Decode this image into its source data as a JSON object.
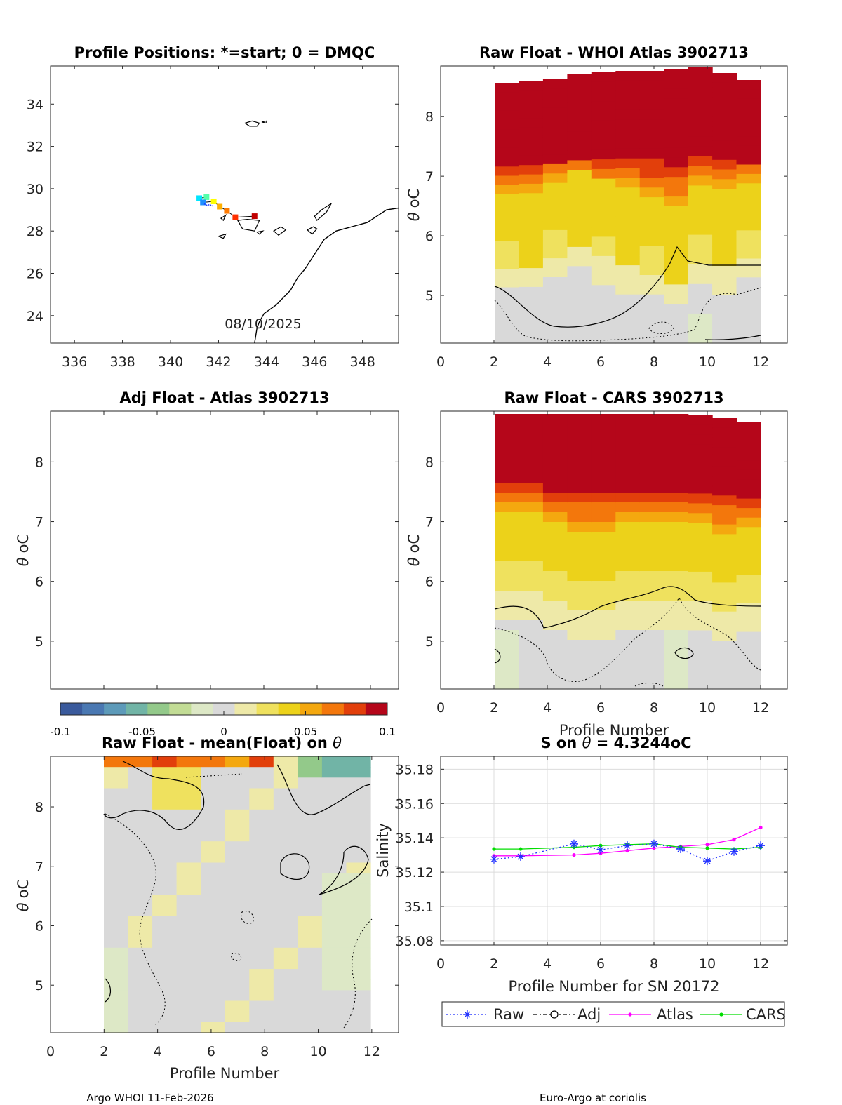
{
  "colors": {
    "colormap": [
      "#3a5a9c",
      "#4a78b2",
      "#5d9ab9",
      "#71b4a6",
      "#93c98a",
      "#c2dc95",
      "#dde8c6",
      "#d9d9d9",
      "#eee9a8",
      "#efe15e",
      "#ecd21a",
      "#f4a80f",
      "#f3770c",
      "#e23f0b",
      "#b5061a"
    ],
    "raw": "#1f2fff",
    "adj": "#000000",
    "atlas": "#ff00ff",
    "cars": "#00dd00",
    "land": "#000000"
  },
  "map": {
    "title": "Profile Positions: *=start; 0 = DMQC",
    "date_label": "08/10/2025",
    "xlim": [
      335,
      349.5
    ],
    "ylim": [
      22.7,
      35.8
    ],
    "xticks": [
      336,
      338,
      340,
      342,
      344,
      346,
      348
    ],
    "yticks": [
      24,
      26,
      28,
      30,
      32,
      34
    ],
    "positions": [
      {
        "lon": 341.2,
        "lat": 29.55,
        "color": "#00e5ff"
      },
      {
        "lon": 341.5,
        "lat": 29.6,
        "color": "#55ffaa"
      },
      {
        "lon": 341.35,
        "lat": 29.35,
        "color": "#1f8fff"
      },
      {
        "lon": 341.8,
        "lat": 29.4,
        "color": "#ffff00"
      },
      {
        "lon": 342.05,
        "lat": 29.15,
        "color": "#ffb000"
      },
      {
        "lon": 342.35,
        "lat": 28.95,
        "color": "#ff7a00"
      },
      {
        "lon": 342.7,
        "lat": 28.65,
        "color": "#ff3000"
      },
      {
        "lon": 343.5,
        "lat": 28.7,
        "color": "#c00000"
      }
    ]
  },
  "panel_atlas": {
    "title": "Raw Float - WHOI Atlas  3902713",
    "ylabel_theta": "θ",
    "ylabel_unit": "oC"
  },
  "panel_adj": {
    "title": "Adj Float - Atlas  3902713",
    "ylabel_theta": "θ",
    "ylabel_unit": "oC"
  },
  "panel_cars": {
    "title": "Raw Float - CARS  3902713",
    "ylabel_theta": "θ",
    "ylabel_unit": "oC",
    "xlabel": "Profile Number"
  },
  "panel_mean": {
    "title_a": "Raw Float - mean(Float) on",
    "title_theta": "θ",
    "ylabel_theta": "θ",
    "ylabel_unit": "oC",
    "xlabel": "Profile Number"
  },
  "colorbar": {
    "ticks": [
      "-0.1",
      "-0.05",
      "0",
      "0.05",
      "0.1"
    ],
    "range": [
      -0.1,
      0.1
    ]
  },
  "theta_axes": {
    "xlim": [
      0,
      13
    ],
    "ylim": [
      4.2,
      8.85
    ],
    "xticks": [
      "0",
      "2",
      "4",
      "6",
      "8",
      "10",
      "12"
    ],
    "yticks": [
      "5",
      "6",
      "7",
      "8"
    ]
  },
  "chart_data": {
    "type": "line",
    "title_a": "S on",
    "title_theta": "θ",
    "title_b": "= 4.3244",
    "title_unit": "oC",
    "xlabel": "Profile Number for SN 20172",
    "ylabel": "Salinity",
    "xlim": [
      0,
      13
    ],
    "ylim": [
      35.0775,
      35.1875
    ],
    "xticks": [
      "0",
      "2",
      "4",
      "6",
      "8",
      "10",
      "12"
    ],
    "yticks": [
      "35.08",
      "35.1",
      "35.12",
      "35.14",
      "35.16",
      "35.18"
    ],
    "series": [
      {
        "name": "Raw",
        "x": [
          2,
          3,
          5,
          6,
          7,
          8,
          9,
          10,
          11,
          12
        ],
        "values": [
          35.1275,
          35.129,
          35.1365,
          35.133,
          35.1355,
          35.1365,
          35.1335,
          35.1265,
          35.132,
          35.1355
        ]
      },
      {
        "name": "Adj",
        "x": [],
        "values": []
      },
      {
        "name": "Atlas",
        "x": [
          2,
          3,
          5,
          6,
          7,
          8,
          9,
          10,
          11,
          12
        ],
        "values": [
          35.1295,
          35.1295,
          35.13,
          35.131,
          35.1325,
          35.134,
          35.135,
          35.136,
          35.139,
          35.146
        ]
      },
      {
        "name": "CARS",
        "x": [
          2,
          3,
          5,
          6,
          7,
          8,
          9,
          10,
          11,
          12
        ],
        "values": [
          35.1335,
          35.1335,
          35.1345,
          35.1355,
          35.136,
          35.1365,
          35.1345,
          35.134,
          35.1335,
          35.1345
        ]
      }
    ],
    "legend": [
      "Raw",
      "Adj",
      "Atlas",
      "CARS"
    ]
  },
  "footer": {
    "left": "Argo WHOI 11-Feb-2026",
    "right": "Euro-Argo at coriolis"
  }
}
